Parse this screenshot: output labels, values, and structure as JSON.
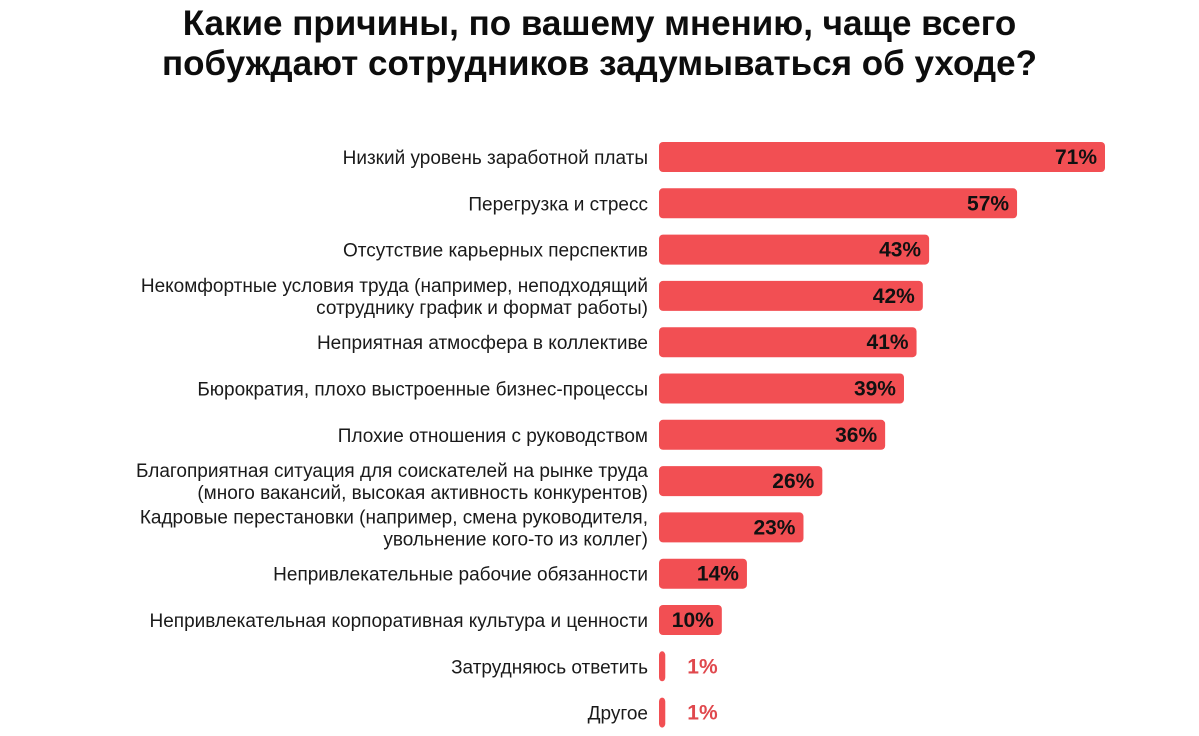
{
  "chart_data": {
    "type": "bar",
    "orientation": "horizontal",
    "title": "Какие причины, по вашему мнению, чаще всего побуждают сотрудников задумываться об уходе?",
    "title_lines": [
      "Какие причины, по вашему мнению, чаще всего",
      "побуждают сотрудников задумываться об уходе?"
    ],
    "categories": [
      [
        "Низкий уровень заработной платы"
      ],
      [
        "Перегрузка и стресс"
      ],
      [
        "Отсутствие карьерных перспектив"
      ],
      [
        "Некомфортные условия труда (например, неподходящий",
        "сотруднику график и формат работы)"
      ],
      [
        "Неприятная атмосфера в коллективе"
      ],
      [
        "Бюрократия, плохо выстроенные бизнес-процессы"
      ],
      [
        "Плохие отношения с руководством"
      ],
      [
        "Благоприятная ситуация для соискателей на рынке труда",
        "(много вакансий, высокая активность конкурентов)"
      ],
      [
        "Кадровые перестановки (например, смена руководителя,",
        "увольнение кого-то из коллег)"
      ],
      [
        "Непривлекательные рабочие обязанности"
      ],
      [
        "Непривлекательная корпоративная культура и ценности"
      ],
      [
        "Затрудняюсь ответить"
      ],
      [
        "Другое"
      ]
    ],
    "values": [
      71,
      57,
      43,
      42,
      41,
      39,
      36,
      26,
      23,
      14,
      10,
      1,
      1
    ],
    "value_labels": [
      "71%",
      "57%",
      "43%",
      "42%",
      "41%",
      "39%",
      "36%",
      "26%",
      "23%",
      "14%",
      "10%",
      "1%",
      "1%"
    ],
    "unit": "%",
    "xlim": [
      0,
      71
    ],
    "grid": false,
    "legend": "none",
    "colors": {
      "bar": "#f24f53",
      "label_inside": "#111111",
      "label_outside": "#e0484d"
    }
  }
}
